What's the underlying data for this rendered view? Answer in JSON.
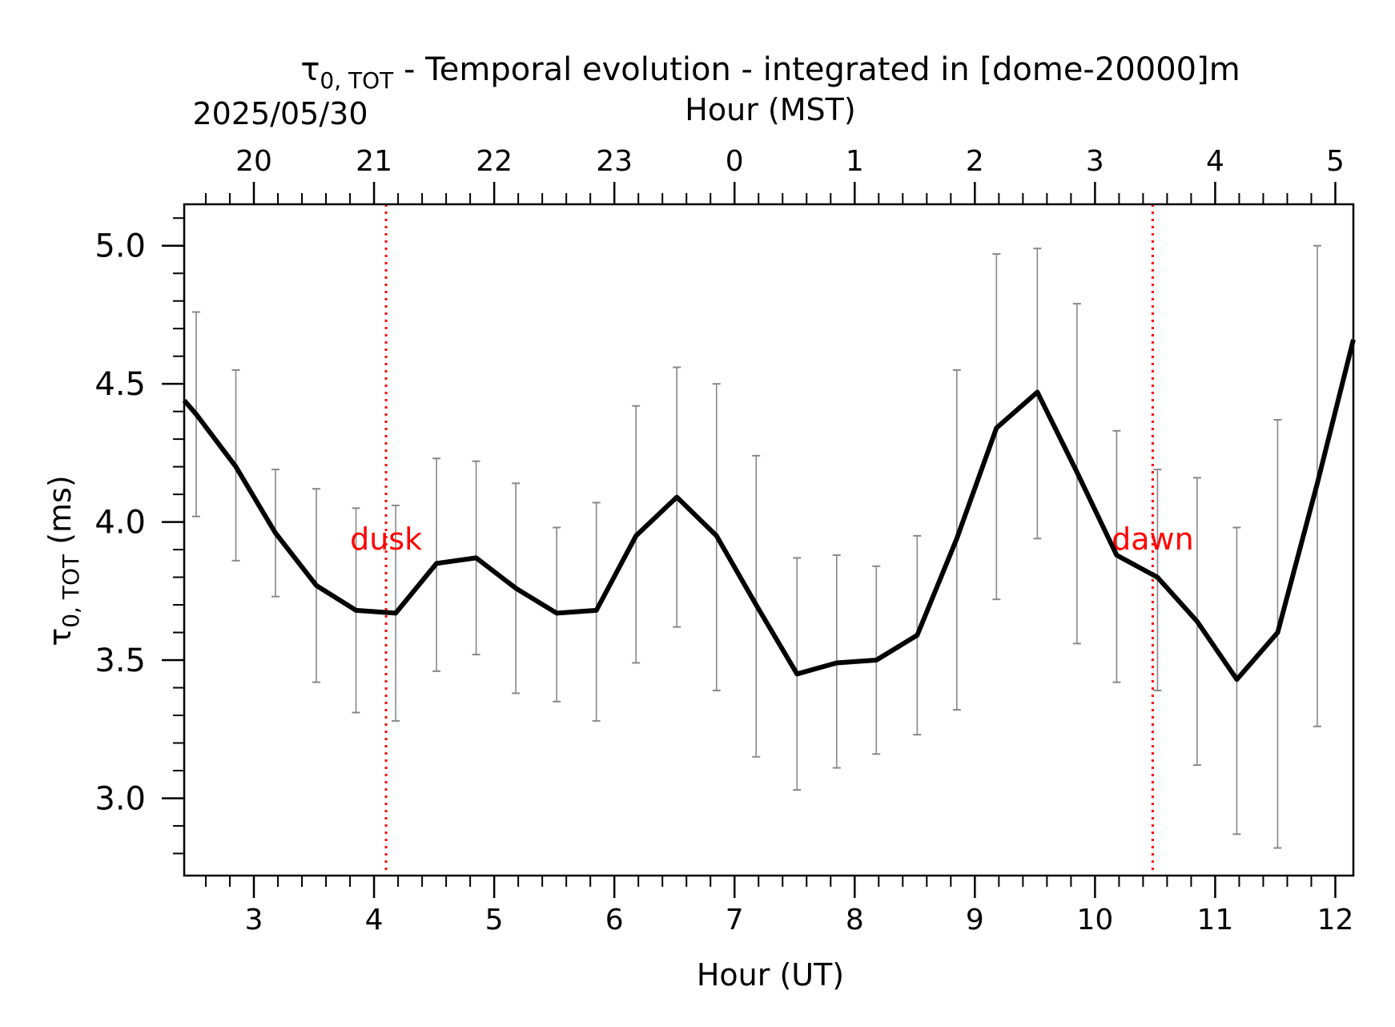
{
  "chart_data": {
    "type": "line",
    "title_main": "τ",
    "title_sub": "0, TOT",
    "title_rest": " - Temporal evolution - integrated in [dome-20000]m",
    "date_label": "2025/05/30",
    "xlabel": "Hour (UT)",
    "xlabel_top": "Hour (MST)",
    "ylabel_main": "τ",
    "ylabel_sub": "0, TOT",
    "ylabel_rest": " (ms)",
    "xlim": [
      2.42,
      12.15
    ],
    "ylim": [
      2.72,
      5.15
    ],
    "x_ticks": [
      3,
      4,
      5,
      6,
      7,
      8,
      9,
      10,
      11,
      12
    ],
    "x_tick_labels": [
      "3",
      "4",
      "5",
      "6",
      "7",
      "8",
      "9",
      "10",
      "11",
      "12"
    ],
    "top_tick_labels": [
      "20",
      "21",
      "22",
      "23",
      "0",
      "1",
      "2",
      "3",
      "4",
      "5"
    ],
    "y_ticks": [
      3.0,
      3.5,
      4.0,
      4.5,
      5.0
    ],
    "y_tick_labels": [
      "3.0",
      "3.5",
      "4.0",
      "4.5",
      "5.0"
    ],
    "line_color": "#000000",
    "errorbar_color": "#888888",
    "marker_color": "#ff0000",
    "series": [
      {
        "x": [
          2.42,
          2.52,
          2.85,
          3.18,
          3.52,
          3.85,
          4.18,
          4.52,
          4.85,
          5.18,
          5.52,
          5.85,
          6.18,
          6.52,
          6.85,
          7.18,
          7.52,
          7.85,
          8.18,
          8.52,
          8.85,
          9.18,
          9.52,
          9.85,
          10.18,
          10.52,
          10.85,
          11.18,
          11.52,
          11.85,
          12.15
        ],
        "y": [
          4.44,
          4.39,
          4.2,
          3.96,
          3.77,
          3.68,
          3.67,
          3.85,
          3.87,
          3.76,
          3.67,
          3.68,
          3.95,
          4.09,
          3.95,
          3.7,
          3.45,
          3.49,
          3.5,
          3.59,
          3.94,
          4.34,
          4.47,
          4.18,
          3.88,
          3.8,
          3.64,
          3.43,
          3.6,
          4.14,
          4.66
        ]
      }
    ],
    "error_bars": {
      "x": [
        2.52,
        2.85,
        3.18,
        3.52,
        3.85,
        4.18,
        4.52,
        4.85,
        5.18,
        5.52,
        5.85,
        6.18,
        6.52,
        6.85,
        7.18,
        7.52,
        7.85,
        8.18,
        8.52,
        8.85,
        9.18,
        9.52,
        9.85,
        10.18,
        10.52,
        10.85,
        11.18,
        11.52,
        11.85
      ],
      "low": [
        4.02,
        3.86,
        3.73,
        3.42,
        3.31,
        3.28,
        3.46,
        3.52,
        3.38,
        3.35,
        3.28,
        3.49,
        3.62,
        3.39,
        3.15,
        3.03,
        3.11,
        3.16,
        3.23,
        3.32,
        3.72,
        3.94,
        3.56,
        3.42,
        3.39,
        3.12,
        2.87,
        2.82,
        3.26
      ],
      "high": [
        4.76,
        4.55,
        4.19,
        4.12,
        4.05,
        4.06,
        4.23,
        4.22,
        4.14,
        3.98,
        4.07,
        4.42,
        4.56,
        4.5,
        4.24,
        3.87,
        3.88,
        3.84,
        3.95,
        4.55,
        4.97,
        4.99,
        4.79,
        4.33,
        4.19,
        4.16,
        3.98,
        4.37,
        5.0
      ]
    },
    "markers": [
      {
        "x": 4.1,
        "label": "dusk"
      },
      {
        "x": 10.48,
        "label": "dawn"
      }
    ]
  }
}
